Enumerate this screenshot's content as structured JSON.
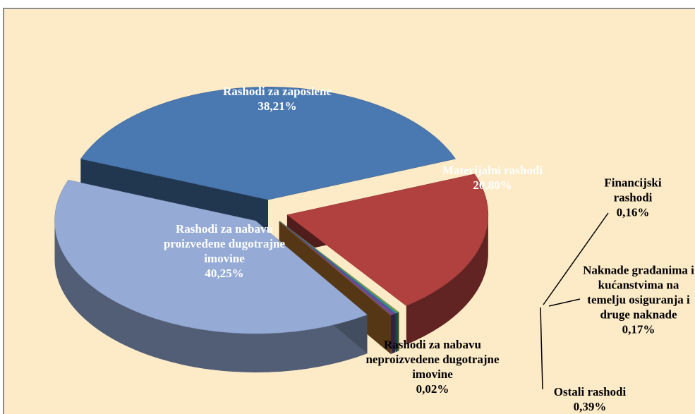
{
  "chart_data": {
    "type": "pie",
    "categories": [
      "Rashodi za zaposlene",
      "Materijalni rashodi",
      "Financijski rashodi",
      "Naknade građanima i kućanstvima na temelju osiguranja i druge naknade",
      "Ostali rashodi",
      "Rashodi za nabavu neproizvedene dugotrajne imovine",
      "Rashodi za nabavu proizvedene dugotrajne imovine"
    ],
    "values": [
      38.21,
      20.8,
      0.16,
      0.17,
      0.39,
      0.02,
      40.25
    ],
    "value_labels": [
      "38,21%",
      "20,80%",
      "0,16%",
      "0,17%",
      "0,39%",
      "0,02%",
      "40,25%"
    ],
    "colors": [
      "#4a78b0",
      "#b0413e",
      "#8aa64a",
      "#2f8fb0",
      "#6d4c8f",
      "#c07a2e",
      "#95abd6"
    ]
  }
}
